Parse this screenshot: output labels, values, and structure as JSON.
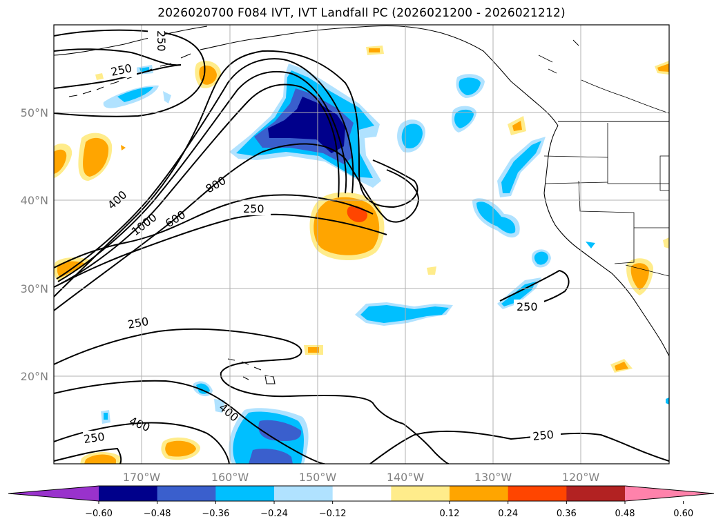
{
  "title": "2026020700 F084 IVT, IVT Landfall PC (2026021200 - 2026021212)",
  "lat_labels": [
    "50°N",
    "40°N",
    "30°N",
    "20°N"
  ],
  "lon_labels": [
    "170°W",
    "160°W",
    "150°W",
    "140°W",
    "130°W",
    "120°W"
  ],
  "contour_labels": {
    "a": "250",
    "b": "250",
    "c": "400",
    "d": "1000",
    "e": "600",
    "f": "800",
    "g": "250",
    "h": "250",
    "i": "250",
    "j": "400",
    "k": "250",
    "l": "400",
    "m": "250"
  },
  "colorbar": {
    "ticks": [
      "−0.60",
      "−0.48",
      "−0.36",
      "−0.24",
      "−0.12",
      "0.12",
      "0.24",
      "0.36",
      "0.48",
      "0.60"
    ],
    "colors": [
      "#9932cc",
      "#00008b",
      "#3a5fcd",
      "#00bfff",
      "#b0e2ff",
      "#ffffff",
      "#ffec8b",
      "#ffa500",
      "#ff4500",
      "#b22222",
      "#ff82ab"
    ]
  },
  "colors": {
    "pos_low": "#ffec8b",
    "pos_mid": "#ffa500",
    "pos_high": "#ff4500",
    "neg_low": "#b0e2ff",
    "neg_mid": "#00bfff",
    "neg_high": "#3a5fcd",
    "neg_max": "#00008b"
  }
}
